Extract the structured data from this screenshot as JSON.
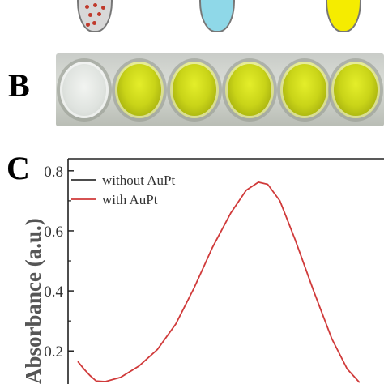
{
  "panels": {
    "b_label": "B",
    "c_label": "C"
  },
  "tubes": [
    {
      "color": "#d8d8d8",
      "dots": true
    },
    {
      "color": "#8fd8e8",
      "dots": false
    },
    {
      "color": "#f5ec00",
      "dots": false
    }
  ],
  "wells": [
    "clear",
    "yellow",
    "yellow",
    "yellow",
    "yellow",
    "yellow"
  ],
  "chart_data": {
    "type": "line",
    "ylabel": "Absorbance (a.u.)",
    "ylim": [
      0.09,
      0.84
    ],
    "yticks": [
      "0.2",
      "0.4",
      "0.6",
      "0.8"
    ],
    "ytick_values": [
      0.2,
      0.4,
      0.6,
      0.8
    ],
    "legend_position": "top-left",
    "series": [
      {
        "name": "without AuPt",
        "color": "#333333",
        "points": []
      },
      {
        "name": "with AuPt",
        "color": "#d03a3a",
        "points": [
          [
            0.0,
            0.165
          ],
          [
            0.02,
            0.14
          ],
          [
            0.04,
            0.118
          ],
          [
            0.06,
            0.1
          ],
          [
            0.09,
            0.098
          ],
          [
            0.14,
            0.112
          ],
          [
            0.2,
            0.15
          ],
          [
            0.26,
            0.205
          ],
          [
            0.32,
            0.29
          ],
          [
            0.38,
            0.41
          ],
          [
            0.44,
            0.545
          ],
          [
            0.5,
            0.66
          ],
          [
            0.55,
            0.735
          ],
          [
            0.59,
            0.762
          ],
          [
            0.62,
            0.755
          ],
          [
            0.66,
            0.7
          ],
          [
            0.71,
            0.57
          ],
          [
            0.77,
            0.4
          ],
          [
            0.83,
            0.24
          ],
          [
            0.88,
            0.14
          ],
          [
            0.92,
            0.095
          ]
        ]
      }
    ]
  }
}
